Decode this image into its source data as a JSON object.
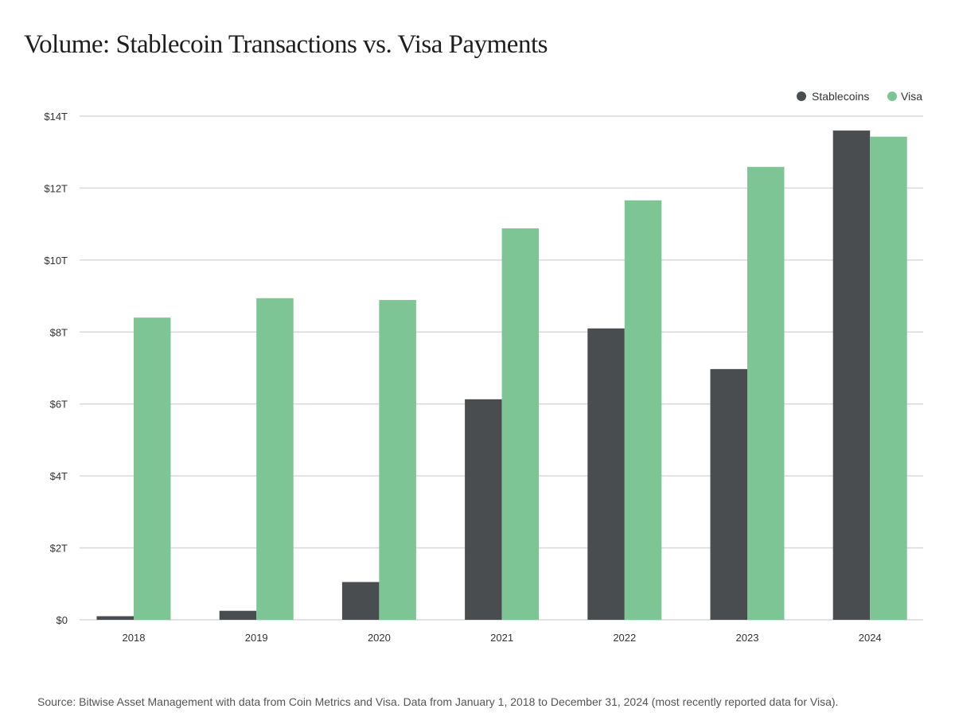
{
  "chart_data": {
    "type": "bar",
    "title": "Volume: Stablecoin Transactions vs. Visa Payments",
    "xlabel": "",
    "ylabel": "",
    "categories": [
      "2018",
      "2019",
      "2020",
      "2021",
      "2022",
      "2023",
      "2024"
    ],
    "series": [
      {
        "name": "Stablecoins",
        "color": "#4a4d50",
        "values": [
          0.1,
          0.25,
          1.05,
          6.13,
          8.1,
          6.97,
          13.6
        ]
      },
      {
        "name": "Visa",
        "color": "#7dc595",
        "values": [
          8.4,
          8.94,
          8.89,
          10.88,
          11.66,
          12.59,
          13.43
        ]
      }
    ],
    "ylim": [
      0,
      14
    ],
    "yticks": [
      0,
      2,
      4,
      6,
      8,
      10,
      12,
      14
    ],
    "ytick_labels": [
      "$0",
      "$2T",
      "$4T",
      "$6T",
      "$8T",
      "$10T",
      "$12T",
      "$14T"
    ],
    "grid": true,
    "legend_position": "top-right",
    "source": "Source: Bitwise Asset Management with data from Coin Metrics and Visa. Data from January 1, 2018 to December 31, 2024 (most recently reported data for Visa)."
  }
}
